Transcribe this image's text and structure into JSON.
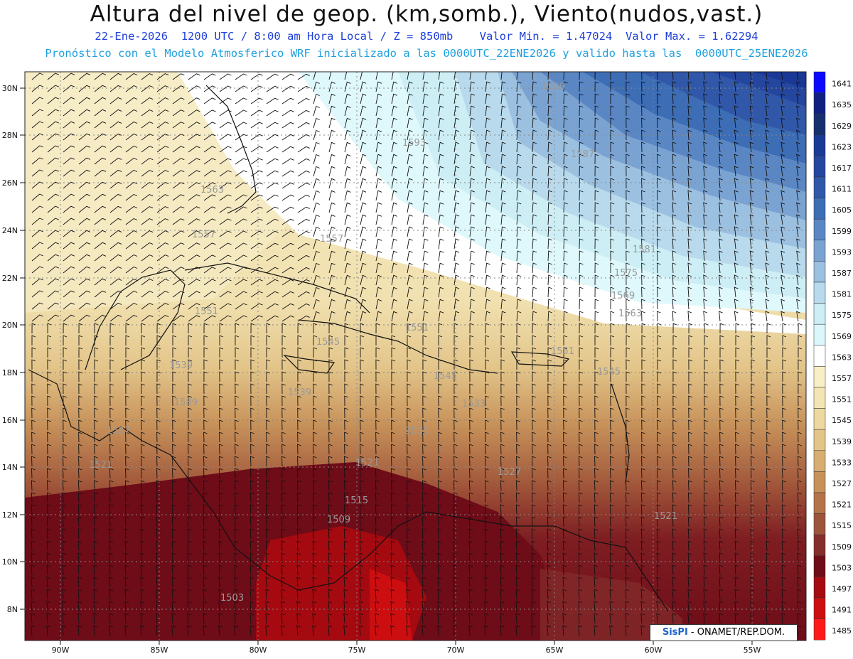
{
  "header": {
    "title": "Altura del nivel de geop. (km,somb.), Viento(nudos,vast.)",
    "line1": "22-Ene-2026  1200 UTC / 8:00 am Hora Local / Z = 850mb    Valor Min. = 1.47024  Valor Max. = 1.62294",
    "line2": "Pronóstico con el Modelo Atmosferico WRF inicializado a las 0000UTC_22ENE2026 y valido hasta las  0000UTC_25ENE2026"
  },
  "axes": {
    "lat_labels": [
      "30N",
      "28N",
      "26N",
      "24N",
      "22N",
      "20N",
      "18N",
      "16N",
      "14N",
      "12N",
      "10N",
      "8N"
    ],
    "lon_labels": [
      "90W",
      "85W",
      "80W",
      "75W",
      "70W",
      "65W",
      "60W",
      "55W"
    ]
  },
  "colorbar": {
    "levels": [
      "1641",
      "1635",
      "1629",
      "1623",
      "1617",
      "1611",
      "1605",
      "1599",
      "1593",
      "1587",
      "1581",
      "1575",
      "1569",
      "1563",
      "1557",
      "1551",
      "1545",
      "1539",
      "1533",
      "1527",
      "1521",
      "1515",
      "1509",
      "1503",
      "1497",
      "1491",
      "1485"
    ],
    "colors": [
      "#0a0aff",
      "#102080",
      "#16306e",
      "#1a3896",
      "#25469e",
      "#3158a8",
      "#3d6db5",
      "#5a87c4",
      "#7aa3d2",
      "#9cc0e0",
      "#b8daec",
      "#cdeef5",
      "#dcf7fb",
      "#ffffff",
      "#f8efc9",
      "#f3e5b6",
      "#ecd8a0",
      "#e3c58a",
      "#d7ae72",
      "#c7925a",
      "#b4744a",
      "#9c553b",
      "#852e2c",
      "#6e0c18",
      "#a40a10",
      "#cc0e10",
      "#ff1a1a"
    ]
  },
  "contour_labels": [
    "1599",
    "1593",
    "1587",
    "1581",
    "1575",
    "1569",
    "1563",
    "1563",
    "1557",
    "1557",
    "1551",
    "1551",
    "1551",
    "1545",
    "1545",
    "1545",
    "1539",
    "1539",
    "1539",
    "1533",
    "1533",
    "1527",
    "1527",
    "1521",
    "1521",
    "1521",
    "1515",
    "1509",
    "1503"
  ],
  "credit": {
    "logo": "SisPI",
    "text": " - ONAMET/REP.DOM."
  },
  "colors": {
    "title": "#111111",
    "line1": "#1f3fd8",
    "line2": "#1fa0e0"
  }
}
